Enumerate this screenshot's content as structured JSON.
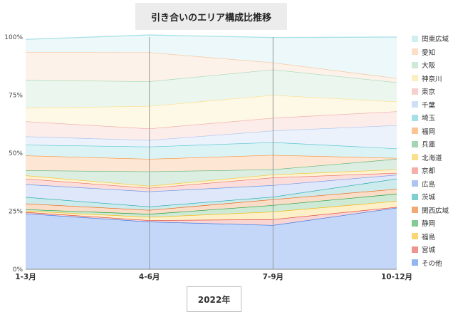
{
  "chart_data": {
    "type": "area",
    "stacked": true,
    "title": "引き合いのエリア構成比推移",
    "xlabel": "2022年",
    "ylabel": "",
    "categories": [
      "1-3月",
      "4-6月",
      "7-9月",
      "10-12月"
    ],
    "ylim": [
      0,
      100
    ],
    "yticks": [
      "0%",
      "25%",
      "50%",
      "75%",
      "100%"
    ],
    "grid": false,
    "legend_position": "right",
    "series": [
      {
        "name": "その他",
        "color": "#3b78e7",
        "values": [
          24,
          20.5,
          19,
          26.5
        ]
      },
      {
        "name": "宮城",
        "color": "#e03c31",
        "values": [
          0.6,
          0.6,
          2.5,
          0.3
        ]
      },
      {
        "name": "福島",
        "color": "#f4b400",
        "values": [
          0.6,
          1.4,
          3.3,
          2.6
        ]
      },
      {
        "name": "静岡",
        "color": "#1e9e3e",
        "values": [
          0.6,
          1.3,
          2.8,
          3.1
        ]
      },
      {
        "name": "関西広域",
        "color": "#e8630a",
        "values": [
          2.5,
          1.7,
          2.5,
          2.1
        ]
      },
      {
        "name": "茨城",
        "color": "#1aa6a8",
        "values": [
          2.8,
          1.5,
          1.1,
          4.4
        ]
      },
      {
        "name": "広島",
        "color": "#6b95e6",
        "values": [
          5.5,
          6.5,
          5,
          1.7
        ]
      },
      {
        "name": "京都",
        "color": "#ec6b61",
        "values": [
          2.4,
          1.5,
          3.3,
          0.8
        ]
      },
      {
        "name": "北海道",
        "color": "#f6c532",
        "values": [
          1.4,
          0.9,
          1.3,
          1.5
        ]
      },
      {
        "name": "兵庫",
        "color": "#5cb377",
        "values": [
          2.2,
          6.2,
          2.2,
          4.5
        ]
      },
      {
        "name": "福岡",
        "color": "#f7943c",
        "values": [
          6.4,
          5.4,
          6.2,
          0.4
        ]
      },
      {
        "name": "埼玉",
        "color": "#5cc7d0",
        "values": [
          4.6,
          5.3,
          5.5,
          4.1
        ]
      },
      {
        "name": "千葉",
        "color": "#a8c4f0",
        "values": [
          3.6,
          2.8,
          5,
          10
        ]
      },
      {
        "name": "東京",
        "color": "#f2a7a0",
        "values": [
          6.5,
          5,
          5.5,
          6
        ]
      },
      {
        "name": "神奈川",
        "color": "#fbe08c",
        "values": [
          5.8,
          9.7,
          9.8,
          4.2
        ]
      },
      {
        "name": "大阪",
        "color": "#a5d8b5",
        "values": [
          12,
          10.6,
          11,
          8.3
        ]
      },
      {
        "name": "愛知",
        "color": "#f8c59c",
        "values": [
          12,
          12.5,
          3,
          1.8
        ]
      },
      {
        "name": "関東広域",
        "color": "#a7e1e6",
        "values": [
          5.5,
          7.5,
          10.8,
          17.7
        ]
      }
    ]
  }
}
